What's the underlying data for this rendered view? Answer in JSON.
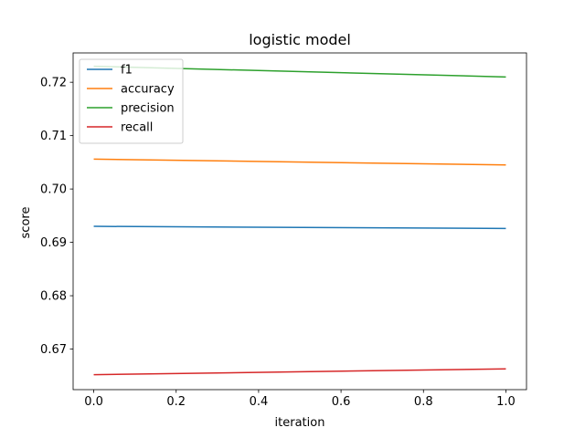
{
  "chart_data": {
    "type": "line",
    "title": "logistic model",
    "xlabel": "iteration",
    "ylabel": "score",
    "xlim": [
      -0.05,
      1.05
    ],
    "ylim": [
      0.6624,
      0.7255
    ],
    "xticks": [
      0.0,
      0.2,
      0.4,
      0.6,
      0.8,
      1.0
    ],
    "xtick_labels": [
      "0.0",
      "0.2",
      "0.4",
      "0.6",
      "0.8",
      "1.0"
    ],
    "yticks": [
      0.67,
      0.68,
      0.69,
      0.7,
      0.71,
      0.72
    ],
    "ytick_labels": [
      "0.67",
      "0.68",
      "0.69",
      "0.70",
      "0.71",
      "0.72"
    ],
    "grid": false,
    "legend_position": "top-left",
    "x": [
      0.0,
      1.0
    ],
    "series": [
      {
        "name": "f1",
        "color": "#1f77b4",
        "values": [
          0.693,
          0.6926
        ]
      },
      {
        "name": "accuracy",
        "color": "#ff7f0e",
        "values": [
          0.7056,
          0.7045
        ]
      },
      {
        "name": "precision",
        "color": "#2ca02c",
        "values": [
          0.723,
          0.721
        ]
      },
      {
        "name": "recall",
        "color": "#d62728",
        "values": [
          0.6652,
          0.6663
        ]
      }
    ]
  }
}
